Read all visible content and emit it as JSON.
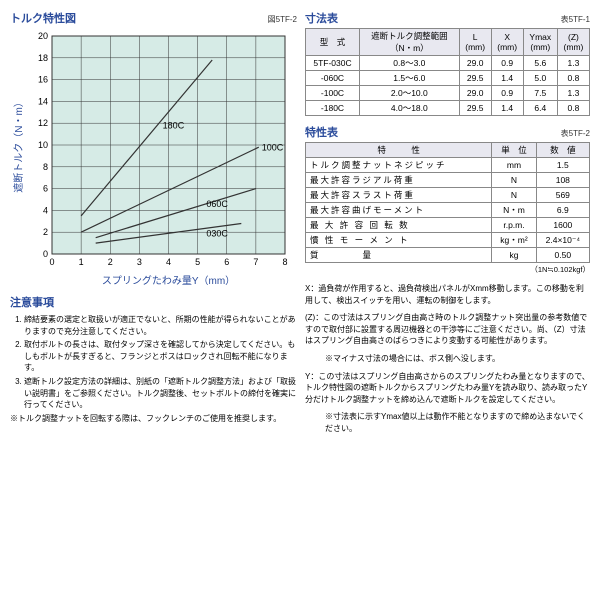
{
  "chart": {
    "title": "トルク特性図",
    "fig_label": "図5TF-2",
    "xlabel": "スプリングたわみ量Y（mm）",
    "ylabel": "遮断トルク（N・m）",
    "xlim": [
      0,
      8
    ],
    "ylim": [
      0,
      20
    ],
    "xtick_step": 1,
    "ytick_step": 2,
    "bg_color": "#d6ebe6",
    "axis_color": "#333",
    "line_color": "#333",
    "font_size_axis": 9,
    "font_size_label": 10,
    "series": [
      {
        "label": "180C",
        "points": [
          [
            1,
            3.5
          ],
          [
            5.5,
            17.8
          ]
        ],
        "label_pos": [
          3.8,
          11.5
        ]
      },
      {
        "label": "100C",
        "points": [
          [
            1,
            2
          ],
          [
            7.1,
            9.8
          ]
        ],
        "label_pos": [
          7.2,
          9.5
        ]
      },
      {
        "label": "060C",
        "points": [
          [
            1.5,
            1.5
          ],
          [
            7,
            6
          ]
        ],
        "label_pos": [
          5.3,
          4.3
        ]
      },
      {
        "label": "030C",
        "points": [
          [
            1.5,
            1
          ],
          [
            6.5,
            2.8
          ]
        ],
        "label_pos": [
          5.3,
          1.6
        ]
      }
    ]
  },
  "dim_table": {
    "title": "寸法表",
    "fig_label": "表5TF-1",
    "headers": [
      "型　式",
      "遮断トルク調整範囲\n（N・m）",
      "L\n(mm)",
      "X\n(mm)",
      "Ymax\n(mm)",
      "(Z)\n(mm)"
    ],
    "rows": [
      [
        "5TF-030C",
        "0.8～3.0",
        "29.0",
        "0.9",
        "5.6",
        "1.3"
      ],
      [
        "-060C",
        "1.5～6.0",
        "29.5",
        "1.4",
        "5.0",
        "0.8"
      ],
      [
        "-100C",
        "2.0～10.0",
        "29.0",
        "0.9",
        "7.5",
        "1.3"
      ],
      [
        "-180C",
        "4.0～18.0",
        "29.5",
        "1.4",
        "6.4",
        "0.8"
      ]
    ]
  },
  "spec_table": {
    "title": "特性表",
    "fig_label": "表5TF-2",
    "headers": [
      "特　　　性",
      "単　位",
      "数　値"
    ],
    "rows": [
      [
        "トルク調整ナットネジピッチ",
        "mm",
        "1.5"
      ],
      [
        "最大許容ラジアル荷重",
        "N",
        "108"
      ],
      [
        "最大許容スラスト荷重",
        "N",
        "569"
      ],
      [
        "最大許容曲げモーメント",
        "N・m",
        "6.9"
      ],
      [
        "最 大 許 容 回 転 数",
        "r.p.m.",
        "1600"
      ],
      [
        "慣 性 モ ー メ ン ト",
        "kg・m²",
        "2.4×10⁻⁴"
      ],
      [
        "質　　　　量",
        "kg",
        "0.50"
      ]
    ],
    "unit_note": "（1N≒0.102kgf）"
  },
  "notes_left": {
    "title": "注意事項",
    "items": [
      "締結要素の選定と取扱いが適正でないと、所期の性能が得られないことがありますので充分注意してください。",
      "取付ボルトの長さは、取付タップ深さを確認してから決定してください。もしもボルトが長すぎると、フランジとボスはロックされ回転不能になります。",
      "遮断トルク設定方法の詳細は、別紙の「遮断トルク調整方法」および「取扱い説明書」をご参照ください。トルク調整後、セットボルトの締付を確実に行ってください。"
    ],
    "bullet": "※トルク調整ナットを回転する際は、フックレンチのご使用を推奨します。"
  },
  "notes_right": [
    {
      "key": "X：",
      "text": "過負荷が作用すると、過負荷検出パネルがXmm移動します。この移動を利用して、検出スイッチを用い、運転の制御をします。"
    },
    {
      "key": "(Z)：",
      "text": "この寸法はスプリング自由高さ時のトルク調整ナット突出量の参考数値ですので取付部に設置する周辺機器との干渉等にご注意ください。尚、（Z）寸法はスプリング自由高さのばらつきにより変動する可能性があります。"
    },
    {
      "key": "",
      "text": "※マイナス寸法の場合には、ボス側へ没します。"
    },
    {
      "key": "Y：",
      "text": "この寸法はスプリング自由高さからのスプリングたわみ量となりますので、トルク特性図の遮断トルクからスプリングたわみ量Yを読み取り、読み取ったY分だけトルク調整ナットを締め込んで遮断トルクを設定してください。"
    },
    {
      "key": "",
      "text": "※寸法表に示すYmax値以上は動作不能となりますので締め込まないでください。"
    }
  ]
}
